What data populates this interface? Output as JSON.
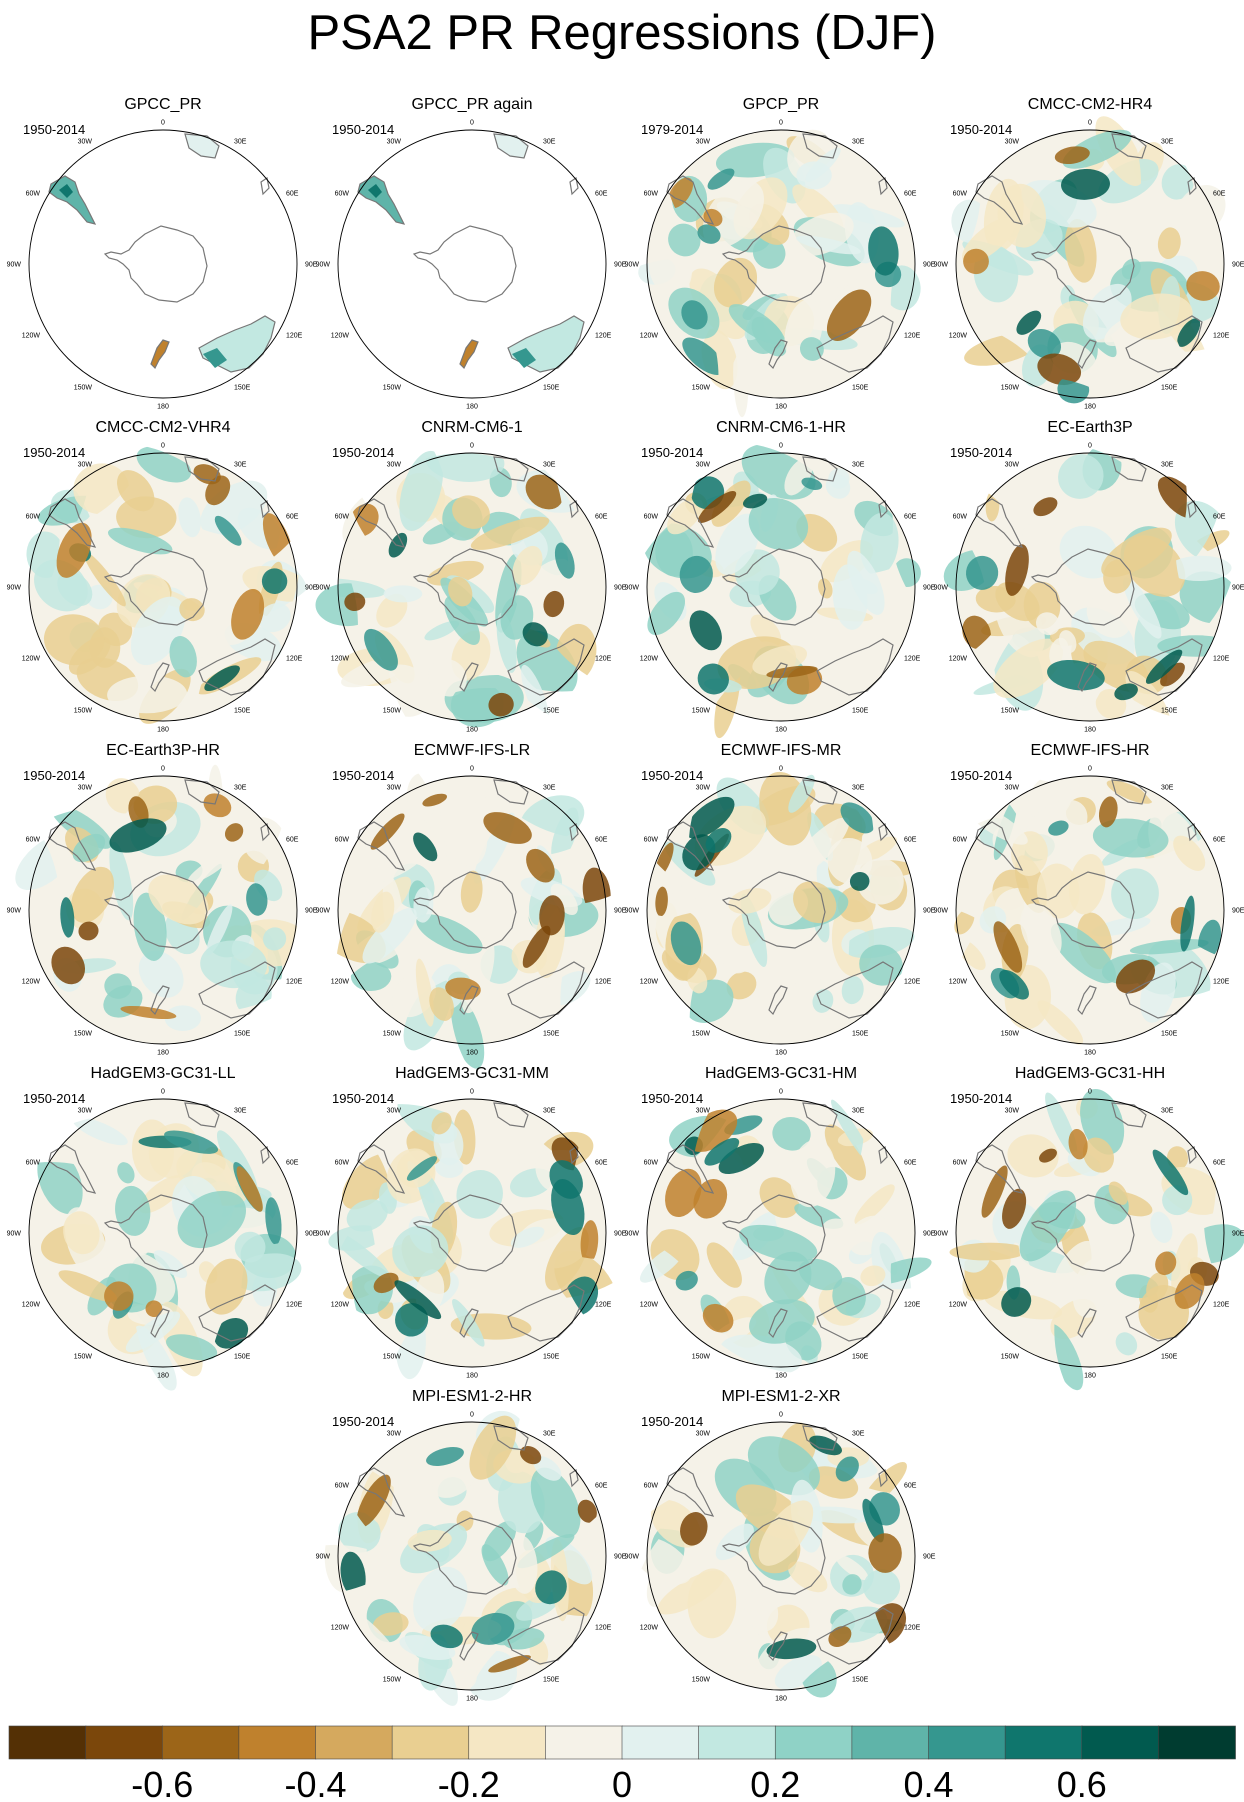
{
  "title": "PSA2 PR Regressions (DJF)",
  "map_labels": [
    "0",
    "30E",
    "60E",
    "90E",
    "120E",
    "150E",
    "180",
    "150W",
    "120W",
    "90W",
    "60W",
    "30W"
  ],
  "panels": [
    {
      "title": "GPCC_PR",
      "years": "1950-2014",
      "field": "land-only",
      "seed": 3
    },
    {
      "title": "GPCC_PR again",
      "years": "1950-2014",
      "field": "land-only",
      "seed": 4
    },
    {
      "title": "GPCP_PR",
      "years": "1979-2014",
      "field": "full",
      "seed": 11
    },
    {
      "title": "CMCC-CM2-HR4",
      "years": "1950-2014",
      "field": "full",
      "seed": 17
    },
    {
      "title": "CMCC-CM2-VHR4",
      "years": "1950-2014",
      "field": "full",
      "seed": 23
    },
    {
      "title": "CNRM-CM6-1",
      "years": "1950-2014",
      "field": "full",
      "seed": 29
    },
    {
      "title": "CNRM-CM6-1-HR",
      "years": "1950-2014",
      "field": "full",
      "seed": 31
    },
    {
      "title": "EC-Earth3P",
      "years": "1950-2014",
      "field": "full",
      "seed": 37
    },
    {
      "title": "EC-Earth3P-HR",
      "years": "1950-2014",
      "field": "full",
      "seed": 41
    },
    {
      "title": "ECMWF-IFS-LR",
      "years": "1950-2014",
      "field": "full",
      "seed": 43
    },
    {
      "title": "ECMWF-IFS-MR",
      "years": "1950-2014",
      "field": "full",
      "seed": 47
    },
    {
      "title": "ECMWF-IFS-HR",
      "years": "1950-2014",
      "field": "full",
      "seed": 53
    },
    {
      "title": "HadGEM3-GC31-LL",
      "years": "1950-2014",
      "field": "full",
      "seed": 59
    },
    {
      "title": "HadGEM3-GC31-MM",
      "years": "1950-2014",
      "field": "full",
      "seed": 61
    },
    {
      "title": "HadGEM3-GC31-HM",
      "years": "1950-2014",
      "field": "full",
      "seed": 67
    },
    {
      "title": "HadGEM3-GC31-HH",
      "years": "1950-2014",
      "field": "full",
      "seed": 71
    },
    {
      "title": "MPI-ESM1-2-HR",
      "years": "1950-2014",
      "field": "full",
      "seed": 73
    },
    {
      "title": "MPI-ESM1-2-XR",
      "years": "1950-2014",
      "field": "full",
      "seed": 79
    }
  ],
  "colorbar": {
    "colors": [
      "#543005",
      "#7b470b",
      "#9c6518",
      "#bf812d",
      "#d5a95e",
      "#e9cf91",
      "#f5e7c4",
      "#f5f2e8",
      "#e2f1ef",
      "#c2e8e1",
      "#8fd2c6",
      "#5fb4a9",
      "#35978f",
      "#0f766d",
      "#015a4f",
      "#003c30"
    ],
    "tick_labels": [
      "-0.6",
      "-0.4",
      "-0.2",
      "0",
      "0.2",
      "0.4",
      "0.6"
    ]
  }
}
